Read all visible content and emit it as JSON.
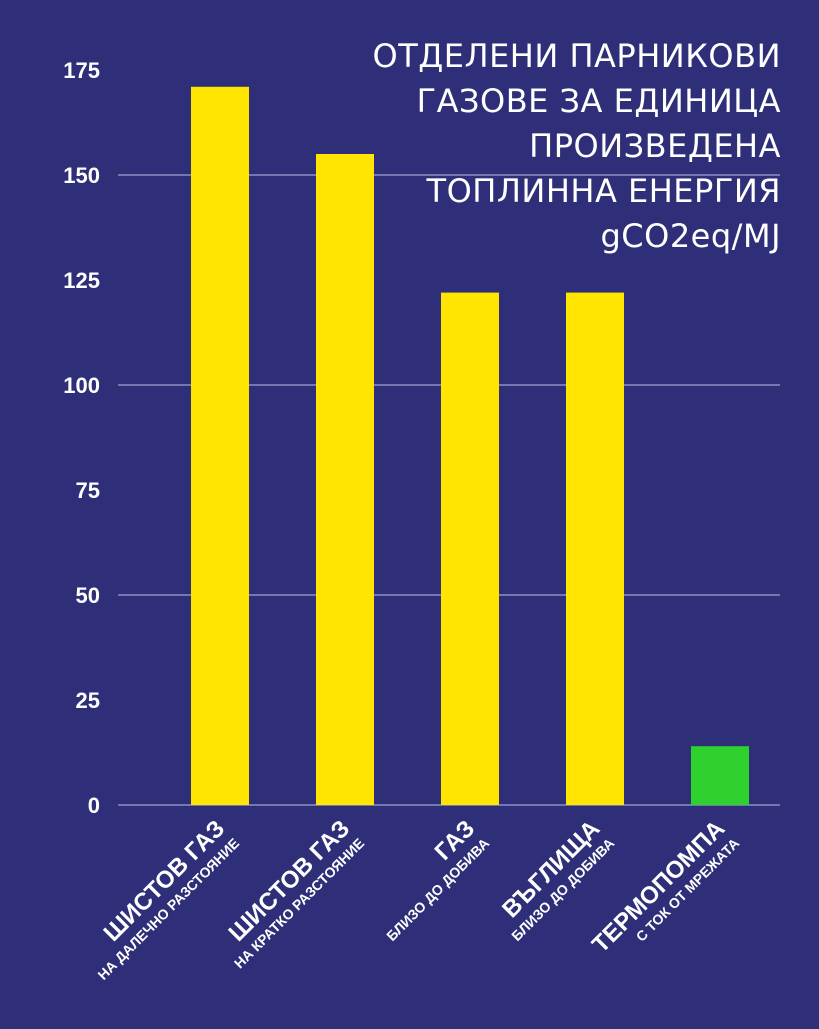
{
  "title_lines": [
    "ОТДЕЛЕНИ ПАРНИКОВИ",
    "ГАЗОВЕ ЗА ЕДИНИЦА",
    "ПРОИЗВЕДЕНА",
    "ТОПЛИННА ЕНЕРГИЯ",
    "gCO2eq/MJ"
  ],
  "colors": {
    "background": "#2e2f78",
    "bar_default": "#ffe500",
    "bar_highlight": "#2fd12f",
    "grid": "#8b8fc4",
    "text": "#ffffff"
  },
  "chart_data": {
    "type": "bar",
    "title": "ОТДЕЛЕНИ ПАРНИКОВИ ГАЗОВЕ ЗА ЕДИНИЦА ПРОИЗВЕДЕНА ТОПЛИННА ЕНЕРГИЯ",
    "ylabel": "gCO2eq/MJ",
    "xlabel": "",
    "ylim": [
      0,
      175
    ],
    "yticks": [
      0,
      25,
      50,
      75,
      100,
      125,
      150,
      175
    ],
    "gridlines_at": [
      0,
      50,
      100,
      150
    ],
    "grid": true,
    "categories": [
      {
        "main": "ШИСТОВ ГАЗ",
        "sub": "НА ДАЛЕЧНО РАЗСТОЯНИЕ"
      },
      {
        "main": "ШИСТОВ ГАЗ",
        "sub": "НА КРАТКО РАЗСТОЯНИЕ"
      },
      {
        "main": "ГАЗ",
        "sub": "БЛИЗО ДО ДОБИВА"
      },
      {
        "main": "ВЪГЛИЩА",
        "sub": "БЛИЗО ДО ДОБИВА"
      },
      {
        "main": "ТЕРМОПОМПА",
        "sub": "С ТОК ОТ МРЕЖАТА"
      }
    ],
    "values": [
      171,
      155,
      122,
      122,
      14
    ],
    "bar_colors": [
      "#ffe500",
      "#ffe500",
      "#ffe500",
      "#ffe500",
      "#2fd12f"
    ]
  }
}
